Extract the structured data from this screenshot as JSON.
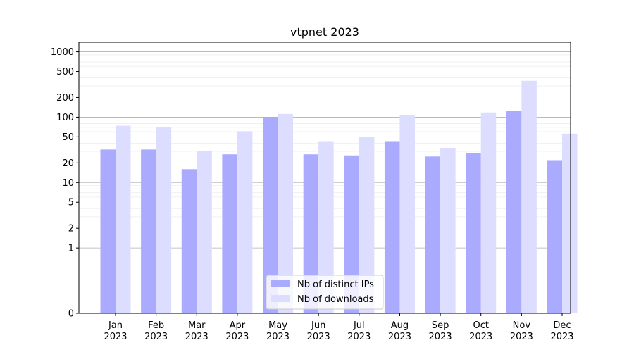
{
  "chart_data": {
    "type": "bar",
    "title": "vtpnet 2023",
    "xlabel": "",
    "ylabel": "",
    "y_scale": "symlog",
    "ylim": [
      0,
      1400
    ],
    "y_ticks": [
      0,
      1,
      2,
      5,
      10,
      20,
      50,
      100,
      200,
      500,
      1000
    ],
    "y_tick_labels": [
      "0",
      "1",
      "2",
      "5",
      "10",
      "20",
      "50",
      "100",
      "200",
      "500",
      "1000"
    ],
    "grid": true,
    "legend_position": "bottom-center",
    "categories": [
      "Jan\n2023",
      "Feb\n2023",
      "Mar\n2023",
      "Apr\n2023",
      "May\n2023",
      "Jun\n2023",
      "Jul\n2023",
      "Aug\n2023",
      "Sep\n2023",
      "Oct\n2023",
      "Nov\n2023",
      "Dec\n2023"
    ],
    "category_lines": [
      [
        "Jan",
        "2023"
      ],
      [
        "Feb",
        "2023"
      ],
      [
        "Mar",
        "2023"
      ],
      [
        "Apr",
        "2023"
      ],
      [
        "May",
        "2023"
      ],
      [
        "Jun",
        "2023"
      ],
      [
        "Jul",
        "2023"
      ],
      [
        "Aug",
        "2023"
      ],
      [
        "Sep",
        "2023"
      ],
      [
        "Oct",
        "2023"
      ],
      [
        "Nov",
        "2023"
      ],
      [
        "Dec",
        "2023"
      ]
    ],
    "series": [
      {
        "name": "Nb of distinct IPs",
        "color": "#aaaaff",
        "values": [
          32,
          32,
          16,
          27,
          100,
          27,
          26,
          43,
          25,
          28,
          125,
          22
        ]
      },
      {
        "name": "Nb of downloads",
        "color": "#ddddff",
        "values": [
          74,
          70,
          30,
          61,
          112,
          43,
          50,
          108,
          34,
          118,
          360,
          56
        ]
      }
    ]
  }
}
